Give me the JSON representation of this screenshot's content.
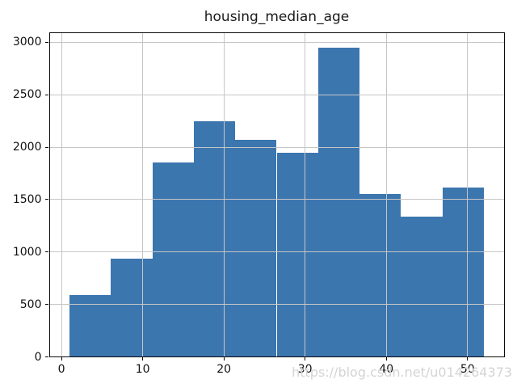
{
  "figure": {
    "watermark": "https://blog.csdn.net/u014264373"
  },
  "chart_data": {
    "type": "histogram",
    "title": "housing_median_age",
    "xlabel": "",
    "ylabel": "",
    "bin_edges": [
      1.0,
      6.1,
      11.2,
      16.3,
      21.4,
      26.5,
      31.6,
      36.7,
      41.8,
      46.9,
      52.0
    ],
    "counts": [
      590,
      936,
      1853,
      2246,
      2068,
      1948,
      2953,
      1554,
      1340,
      1618
    ],
    "x_ticks": [
      0,
      10,
      20,
      30,
      40,
      50
    ],
    "y_ticks": [
      0,
      500,
      1000,
      1500,
      2000,
      2500,
      3000
    ],
    "xlim": [
      -1.55,
      54.55
    ],
    "ylim": [
      0,
      3100
    ],
    "grid": true,
    "grid_over_bars": true,
    "legend_position": "none",
    "bar_color": "#3c76af",
    "grid_color": "#c6c6c6",
    "spine_color": "#0a0a0a"
  }
}
